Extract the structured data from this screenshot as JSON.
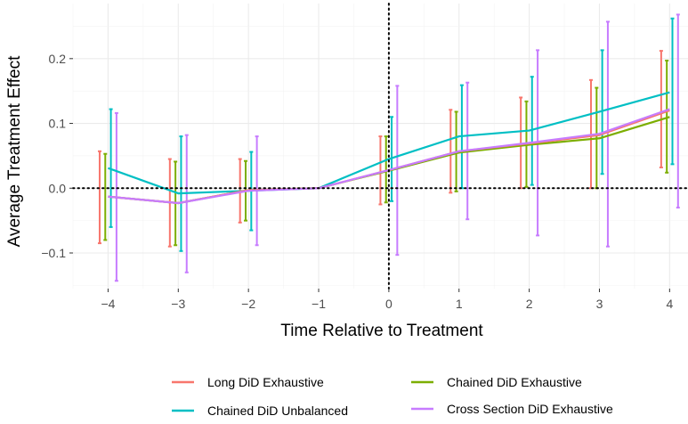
{
  "chart_data": {
    "type": "line",
    "xlabel": "Time Relative to Treatment",
    "ylabel": "Average Treatment Effect",
    "xlim": [
      -4.5,
      4.3
    ],
    "ylim": [
      -0.155,
      0.285
    ],
    "x_ticks": [
      -4,
      -3,
      -2,
      -1,
      0,
      1,
      2,
      3,
      4
    ],
    "x_tick_labels": [
      "−4",
      "−3",
      "−2",
      "−1",
      "0",
      "1",
      "2",
      "3",
      "4"
    ],
    "y_ticks": [
      -0.1,
      0.0,
      0.1,
      0.2
    ],
    "y_tick_labels": [
      "−0.1",
      "0.0",
      "0.1",
      "0.2"
    ],
    "grid": true,
    "reference_lines": {
      "horizontal": 0,
      "vertical": 0,
      "style": "dotted"
    },
    "legend_position": "bottom",
    "error_bar_offset": 0.04,
    "series": [
      {
        "name": "Long DiD Exhaustive",
        "color": "#F8766D",
        "x": [
          -4,
          -3,
          -2,
          -1,
          0,
          1,
          2,
          3,
          4
        ],
        "values": [
          -0.013,
          -0.023,
          -0.003,
          0.0,
          0.028,
          0.057,
          0.069,
          0.082,
          0.12
        ],
        "errbar_index": 0,
        "lower": [
          -0.085,
          -0.09,
          -0.053,
          null,
          -0.025,
          -0.007,
          0.0,
          0.0,
          0.032
        ],
        "upper": [
          0.057,
          0.045,
          0.045,
          null,
          0.08,
          0.121,
          0.14,
          0.167,
          0.212
        ]
      },
      {
        "name": "Chained DiD Exhaustive",
        "color": "#7CAE00",
        "x": [
          -4,
          -3,
          -2,
          -1,
          0,
          1,
          2,
          3,
          4
        ],
        "values": [
          -0.013,
          -0.023,
          -0.003,
          0.0,
          0.027,
          0.055,
          0.067,
          0.077,
          0.11
        ],
        "errbar_index": 1,
        "lower": [
          -0.08,
          -0.088,
          -0.05,
          null,
          -0.022,
          -0.005,
          0.002,
          0.0,
          0.024
        ],
        "upper": [
          0.053,
          0.041,
          0.042,
          null,
          0.08,
          0.118,
          0.134,
          0.155,
          0.197
        ]
      },
      {
        "name": "Chained DiD Unbalanced",
        "color": "#00BFC4",
        "x": [
          -4,
          -3,
          -2,
          -1,
          0,
          1,
          2,
          3,
          4
        ],
        "values": [
          0.031,
          -0.008,
          -0.004,
          0.0,
          0.045,
          0.08,
          0.089,
          0.118,
          0.148
        ],
        "errbar_index": 2,
        "lower": [
          -0.06,
          -0.097,
          -0.065,
          null,
          -0.02,
          0.0,
          0.005,
          0.022,
          0.037
        ],
        "upper": [
          0.122,
          0.08,
          0.056,
          null,
          0.11,
          0.159,
          0.172,
          0.213,
          0.262
        ]
      },
      {
        "name": "Cross Section DiD Exhaustive",
        "color": "#C77CFF",
        "x": [
          -4,
          -3,
          -2,
          -1,
          0,
          1,
          2,
          3,
          4
        ],
        "values": [
          -0.013,
          -0.023,
          -0.004,
          0.0,
          0.028,
          0.057,
          0.07,
          0.084,
          0.122
        ],
        "errbar_index": 3,
        "lower": [
          -0.143,
          -0.13,
          -0.088,
          null,
          -0.103,
          -0.048,
          -0.073,
          -0.09,
          -0.03
        ],
        "upper": [
          0.116,
          0.082,
          0.08,
          null,
          0.158,
          0.163,
          0.213,
          0.257,
          0.268
        ]
      }
    ]
  }
}
